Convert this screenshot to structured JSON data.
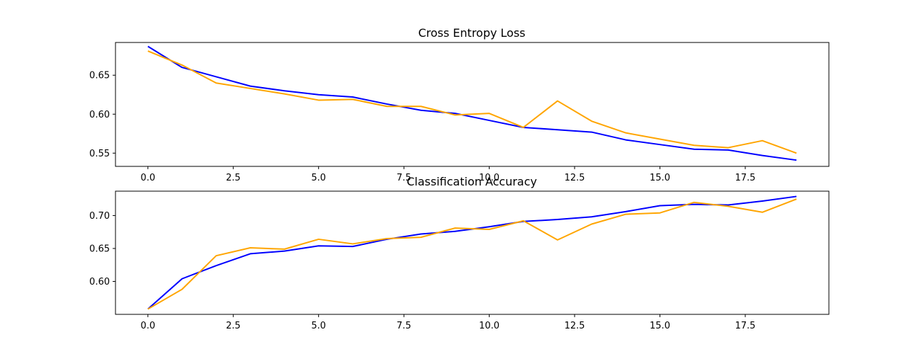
{
  "chart_data": [
    {
      "type": "line",
      "title": "Cross Entropy Loss",
      "xlabel": "",
      "ylabel": "",
      "xlim": [
        -0.95,
        19.95
      ],
      "ylim": [
        0.533,
        0.692
      ],
      "xticks": [
        0.0,
        2.5,
        5.0,
        7.5,
        10.0,
        12.5,
        15.0,
        17.5
      ],
      "xtick_labels": [
        "0.0",
        "2.5",
        "5.0",
        "7.5",
        "10.0",
        "12.5",
        "15.0",
        "17.5"
      ],
      "yticks": [
        0.55,
        0.6,
        0.65
      ],
      "ytick_labels": [
        "0.55",
        "0.60",
        "0.65"
      ],
      "grid": false,
      "x": [
        0,
        1,
        2,
        3,
        4,
        5,
        6,
        7,
        8,
        9,
        10,
        11,
        12,
        13,
        14,
        15,
        16,
        17,
        18,
        19
      ],
      "series": [
        {
          "color": "#0000ff",
          "values": [
            0.687,
            0.66,
            0.648,
            0.636,
            0.63,
            0.625,
            0.622,
            0.613,
            0.605,
            0.601,
            0.592,
            0.583,
            0.58,
            0.577,
            0.567,
            0.561,
            0.555,
            0.554,
            0.547,
            0.541
          ]
        },
        {
          "color": "#ffa500",
          "values": [
            0.681,
            0.663,
            0.64,
            0.633,
            0.626,
            0.618,
            0.619,
            0.61,
            0.61,
            0.599,
            0.601,
            0.583,
            0.617,
            0.591,
            0.576,
            0.568,
            0.56,
            0.557,
            0.566,
            0.55
          ]
        }
      ]
    },
    {
      "type": "line",
      "title": "Classification Accuracy",
      "xlabel": "",
      "ylabel": "",
      "xlim": [
        -0.95,
        19.95
      ],
      "ylim": [
        0.55,
        0.737
      ],
      "xticks": [
        0.0,
        2.5,
        5.0,
        7.5,
        10.0,
        12.5,
        15.0,
        17.5
      ],
      "xtick_labels": [
        "0.0",
        "2.5",
        "5.0",
        "7.5",
        "10.0",
        "12.5",
        "15.0",
        "17.5"
      ],
      "yticks": [
        0.6,
        0.65,
        0.7
      ],
      "ytick_labels": [
        "0.60",
        "0.65",
        "0.70"
      ],
      "grid": false,
      "x": [
        0,
        1,
        2,
        3,
        4,
        5,
        6,
        7,
        8,
        9,
        10,
        11,
        12,
        13,
        14,
        15,
        16,
        17,
        18,
        19
      ],
      "series": [
        {
          "color": "#0000ff",
          "values": [
            0.558,
            0.604,
            0.624,
            0.642,
            0.646,
            0.654,
            0.653,
            0.664,
            0.672,
            0.676,
            0.683,
            0.691,
            0.694,
            0.698,
            0.706,
            0.715,
            0.717,
            0.716,
            0.722,
            0.729
          ]
        },
        {
          "color": "#ffa500",
          "values": [
            0.558,
            0.588,
            0.639,
            0.651,
            0.649,
            0.664,
            0.657,
            0.665,
            0.667,
            0.681,
            0.679,
            0.692,
            0.663,
            0.687,
            0.702,
            0.704,
            0.72,
            0.714,
            0.705,
            0.725
          ]
        }
      ]
    }
  ]
}
